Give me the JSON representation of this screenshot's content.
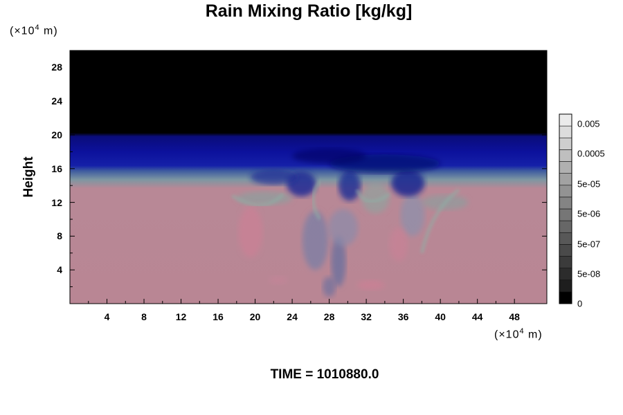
{
  "chart_data": {
    "type": "heatmap",
    "title": "Rain Mixing Ratio [kg/kg]",
    "ylabel": "Height",
    "x_unit_prefix": "(×10",
    "x_unit_exp": "4",
    "x_unit_suffix": " m)",
    "y_unit_prefix": "(×10",
    "y_unit_exp": "4",
    "y_unit_suffix": " m)",
    "xlim": [
      0,
      51.5
    ],
    "ylim": [
      0,
      30
    ],
    "x_ticks": [
      4,
      8,
      12,
      16,
      20,
      24,
      28,
      32,
      36,
      40,
      44,
      48
    ],
    "y_ticks": [
      4,
      8,
      12,
      16,
      20,
      24,
      28
    ],
    "colorbar": {
      "scale": "log",
      "labels": [
        "0.005",
        "0.0005",
        "5e-05",
        "5e-06",
        "5e-07",
        "5e-08",
        "0"
      ],
      "levels": 16
    },
    "regions": [
      {
        "name": "upper",
        "y_range": [
          20,
          30
        ],
        "color": "#000000"
      },
      {
        "name": "band",
        "y_range": [
          16,
          20
        ],
        "color": "#0a0f96"
      },
      {
        "name": "transition",
        "y_range": [
          13.5,
          16
        ],
        "color": "#6f8fa0"
      },
      {
        "name": "lower",
        "y_range": [
          0,
          13.5
        ],
        "color": "#b98694"
      }
    ],
    "time_label": "TIME = 1010880.0"
  }
}
